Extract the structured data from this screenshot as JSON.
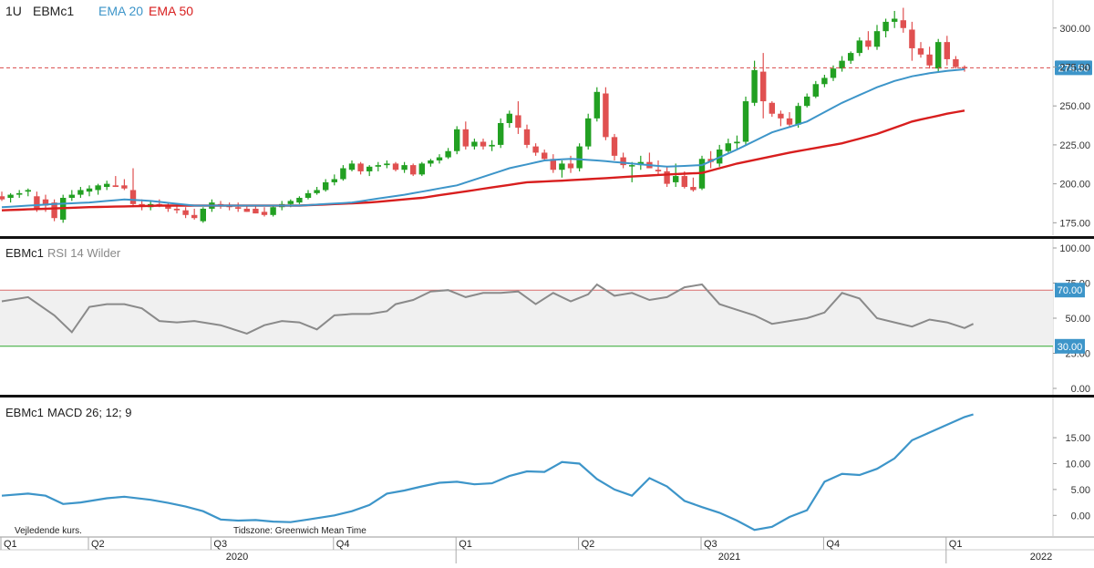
{
  "header": {
    "interval": "1U",
    "symbol": "EBMc1",
    "ema20_label": "EMA 20",
    "ema50_label": "EMA 50"
  },
  "colors": {
    "up": "#22a022",
    "down": "#e05050",
    "ema20": "#3d95c9",
    "ema50": "#d81e1e",
    "rsi": "#8a8a8a",
    "macd": "#3d95c9",
    "band_fill": "#f0f0f0",
    "rsi_upper": "#d96a6a",
    "rsi_lower": "#2fa82f",
    "last_price_tag": "#3d95c9"
  },
  "price_panel": {
    "ylim": [
      167,
      318
    ],
    "yticks": [
      "300.00",
      "275.00",
      "250.00",
      "225.00",
      "200.00",
      "175.00"
    ],
    "last_price": 274.5,
    "last_price_label": "274.50"
  },
  "rsi_panel": {
    "title": "EBMc1",
    "indicator_label": "RSI 14 Wilder",
    "ylim": [
      0,
      100
    ],
    "yticks": [
      "100.00",
      "75.00",
      "50.00",
      "25.00",
      "0.00"
    ],
    "upper": 70,
    "lower": 30,
    "upper_label": "70.00",
    "lower_label": "30.00"
  },
  "macd_panel": {
    "title": "EBMc1",
    "indicator_label": "MACD 26; 12; 9",
    "ylim": [
      -4,
      21
    ],
    "yticks": [
      "15.00",
      "10.00",
      "5.00",
      "0.00"
    ]
  },
  "footer": {
    "note": "Vejledende kurs.",
    "timezone": "Tidszone: Greenwich Mean Time",
    "quarters": [
      "Q1",
      "Q2",
      "Q3",
      "Q4",
      "Q1",
      "Q2",
      "Q3",
      "Q4",
      "Q1"
    ],
    "years": [
      "2020",
      "2021",
      "2022"
    ]
  },
  "chart_data": [
    {
      "type": "candlestick",
      "interval": "1 week",
      "candles": [
        {
          "o": 192,
          "h": 195,
          "l": 189,
          "c": 190
        },
        {
          "o": 191,
          "h": 194,
          "l": 188,
          "c": 193
        },
        {
          "o": 193,
          "h": 196,
          "l": 191,
          "c": 194
        },
        {
          "o": 195,
          "h": 197,
          "l": 192,
          "c": 196
        },
        {
          "o": 192,
          "h": 195,
          "l": 182,
          "c": 184
        },
        {
          "o": 190,
          "h": 193,
          "l": 182,
          "c": 186
        },
        {
          "o": 188,
          "h": 190,
          "l": 176,
          "c": 178
        },
        {
          "o": 177,
          "h": 193,
          "l": 175,
          "c": 191
        },
        {
          "o": 191,
          "h": 196,
          "l": 189,
          "c": 193
        },
        {
          "o": 193,
          "h": 198,
          "l": 191,
          "c": 196
        },
        {
          "o": 195,
          "h": 199,
          "l": 192,
          "c": 197
        },
        {
          "o": 196,
          "h": 200,
          "l": 193,
          "c": 199
        },
        {
          "o": 198,
          "h": 202,
          "l": 196,
          "c": 200
        },
        {
          "o": 199,
          "h": 205,
          "l": 198,
          "c": 198
        },
        {
          "o": 199,
          "h": 203,
          "l": 196,
          "c": 197
        },
        {
          "o": 196,
          "h": 210,
          "l": 185,
          "c": 187
        },
        {
          "o": 187,
          "h": 190,
          "l": 183,
          "c": 186
        },
        {
          "o": 185,
          "h": 189,
          "l": 183,
          "c": 187
        },
        {
          "o": 187,
          "h": 190,
          "l": 185,
          "c": 186
        },
        {
          "o": 186,
          "h": 188,
          "l": 182,
          "c": 184
        },
        {
          "o": 184,
          "h": 186,
          "l": 181,
          "c": 183
        },
        {
          "o": 183,
          "h": 185,
          "l": 178,
          "c": 180
        },
        {
          "o": 180,
          "h": 184,
          "l": 177,
          "c": 178
        },
        {
          "o": 176,
          "h": 185,
          "l": 175,
          "c": 184
        },
        {
          "o": 184,
          "h": 190,
          "l": 182,
          "c": 188
        },
        {
          "o": 187,
          "h": 189,
          "l": 184,
          "c": 186
        },
        {
          "o": 186,
          "h": 188,
          "l": 183,
          "c": 185
        },
        {
          "o": 185,
          "h": 188,
          "l": 182,
          "c": 184
        },
        {
          "o": 184,
          "h": 186,
          "l": 182,
          "c": 182
        },
        {
          "o": 184,
          "h": 186,
          "l": 181,
          "c": 181
        },
        {
          "o": 182,
          "h": 185,
          "l": 179,
          "c": 180
        },
        {
          "o": 180,
          "h": 186,
          "l": 179,
          "c": 185
        },
        {
          "o": 185,
          "h": 189,
          "l": 183,
          "c": 187
        },
        {
          "o": 187,
          "h": 190,
          "l": 185,
          "c": 189
        },
        {
          "o": 188,
          "h": 192,
          "l": 187,
          "c": 191
        },
        {
          "o": 191,
          "h": 196,
          "l": 190,
          "c": 194
        },
        {
          "o": 194,
          "h": 198,
          "l": 193,
          "c": 196
        },
        {
          "o": 196,
          "h": 203,
          "l": 195,
          "c": 201
        },
        {
          "o": 201,
          "h": 206,
          "l": 199,
          "c": 203
        },
        {
          "o": 203,
          "h": 212,
          "l": 202,
          "c": 210
        },
        {
          "o": 209,
          "h": 215,
          "l": 208,
          "c": 213
        },
        {
          "o": 213,
          "h": 214,
          "l": 206,
          "c": 208
        },
        {
          "o": 208,
          "h": 212,
          "l": 205,
          "c": 211
        },
        {
          "o": 211,
          "h": 214,
          "l": 208,
          "c": 212
        },
        {
          "o": 212,
          "h": 215,
          "l": 210,
          "c": 213
        },
        {
          "o": 213,
          "h": 214,
          "l": 208,
          "c": 209
        },
        {
          "o": 209,
          "h": 214,
          "l": 207,
          "c": 212
        },
        {
          "o": 212,
          "h": 213,
          "l": 205,
          "c": 206
        },
        {
          "o": 206,
          "h": 214,
          "l": 205,
          "c": 213
        },
        {
          "o": 213,
          "h": 216,
          "l": 211,
          "c": 215
        },
        {
          "o": 215,
          "h": 219,
          "l": 213,
          "c": 217
        },
        {
          "o": 217,
          "h": 223,
          "l": 216,
          "c": 221
        },
        {
          "o": 221,
          "h": 237,
          "l": 219,
          "c": 235
        },
        {
          "o": 235,
          "h": 240,
          "l": 222,
          "c": 224
        },
        {
          "o": 224,
          "h": 229,
          "l": 222,
          "c": 227
        },
        {
          "o": 227,
          "h": 229,
          "l": 222,
          "c": 224
        },
        {
          "o": 224,
          "h": 228,
          "l": 221,
          "c": 225
        },
        {
          "o": 225,
          "h": 242,
          "l": 223,
          "c": 239
        },
        {
          "o": 239,
          "h": 247,
          "l": 236,
          "c": 245
        },
        {
          "o": 244,
          "h": 253,
          "l": 232,
          "c": 236
        },
        {
          "o": 235,
          "h": 238,
          "l": 223,
          "c": 225
        },
        {
          "o": 224,
          "h": 226,
          "l": 218,
          "c": 220
        },
        {
          "o": 220,
          "h": 222,
          "l": 215,
          "c": 216
        },
        {
          "o": 216,
          "h": 219,
          "l": 207,
          "c": 209
        },
        {
          "o": 209,
          "h": 215,
          "l": 204,
          "c": 213
        },
        {
          "o": 213,
          "h": 218,
          "l": 207,
          "c": 210
        },
        {
          "o": 210,
          "h": 226,
          "l": 208,
          "c": 224
        },
        {
          "o": 224,
          "h": 245,
          "l": 222,
          "c": 242
        },
        {
          "o": 242,
          "h": 262,
          "l": 240,
          "c": 259
        },
        {
          "o": 258,
          "h": 262,
          "l": 228,
          "c": 230
        },
        {
          "o": 230,
          "h": 232,
          "l": 215,
          "c": 218
        },
        {
          "o": 217,
          "h": 220,
          "l": 210,
          "c": 212
        },
        {
          "o": 212,
          "h": 214,
          "l": 201,
          "c": 212
        },
        {
          "o": 212,
          "h": 218,
          "l": 209,
          "c": 214
        },
        {
          "o": 214,
          "h": 220,
          "l": 211,
          "c": 210
        },
        {
          "o": 209,
          "h": 215,
          "l": 206,
          "c": 208
        },
        {
          "o": 208,
          "h": 211,
          "l": 198,
          "c": 200
        },
        {
          "o": 201,
          "h": 213,
          "l": 198,
          "c": 205
        },
        {
          "o": 205,
          "h": 208,
          "l": 197,
          "c": 198
        },
        {
          "o": 198,
          "h": 204,
          "l": 195,
          "c": 196
        },
        {
          "o": 197,
          "h": 218,
          "l": 196,
          "c": 216
        },
        {
          "o": 216,
          "h": 221,
          "l": 210,
          "c": 214
        },
        {
          "o": 213,
          "h": 225,
          "l": 211,
          "c": 222
        },
        {
          "o": 221,
          "h": 229,
          "l": 220,
          "c": 226
        },
        {
          "o": 226,
          "h": 231,
          "l": 222,
          "c": 227
        },
        {
          "o": 227,
          "h": 256,
          "l": 225,
          "c": 253
        },
        {
          "o": 252,
          "h": 279,
          "l": 250,
          "c": 273
        },
        {
          "o": 272,
          "h": 284,
          "l": 242,
          "c": 253
        },
        {
          "o": 252,
          "h": 253,
          "l": 243,
          "c": 245
        },
        {
          "o": 245,
          "h": 247,
          "l": 237,
          "c": 242
        },
        {
          "o": 242,
          "h": 246,
          "l": 236,
          "c": 238
        },
        {
          "o": 238,
          "h": 252,
          "l": 236,
          "c": 250
        },
        {
          "o": 250,
          "h": 258,
          "l": 249,
          "c": 256
        },
        {
          "o": 256,
          "h": 266,
          "l": 255,
          "c": 264
        },
        {
          "o": 264,
          "h": 270,
          "l": 262,
          "c": 268
        },
        {
          "o": 268,
          "h": 276,
          "l": 266,
          "c": 274
        },
        {
          "o": 274,
          "h": 282,
          "l": 272,
          "c": 279
        },
        {
          "o": 279,
          "h": 285,
          "l": 277,
          "c": 284
        },
        {
          "o": 284,
          "h": 294,
          "l": 282,
          "c": 292
        },
        {
          "o": 292,
          "h": 298,
          "l": 286,
          "c": 288
        },
        {
          "o": 288,
          "h": 302,
          "l": 286,
          "c": 298
        },
        {
          "o": 298,
          "h": 306,
          "l": 294,
          "c": 304
        },
        {
          "o": 304,
          "h": 311,
          "l": 300,
          "c": 306
        },
        {
          "o": 305,
          "h": 313,
          "l": 297,
          "c": 300
        },
        {
          "o": 299,
          "h": 304,
          "l": 279,
          "c": 287
        },
        {
          "o": 287,
          "h": 291,
          "l": 281,
          "c": 283
        },
        {
          "o": 283,
          "h": 288,
          "l": 274,
          "c": 276
        },
        {
          "o": 274,
          "h": 293,
          "l": 272,
          "c": 291
        },
        {
          "o": 291,
          "h": 295,
          "l": 276,
          "c": 280
        },
        {
          "o": 280,
          "h": 282,
          "l": 274,
          "c": 275
        },
        {
          "o": 275,
          "h": 276,
          "l": 272,
          "c": 274.5
        }
      ],
      "ema20": [
        [
          0,
          185
        ],
        [
          6,
          187
        ],
        [
          10,
          188
        ],
        [
          14,
          190
        ],
        [
          17,
          189
        ],
        [
          22,
          186
        ],
        [
          28,
          186
        ],
        [
          34,
          186
        ],
        [
          40,
          188
        ],
        [
          46,
          193
        ],
        [
          52,
          199
        ],
        [
          58,
          210
        ],
        [
          62,
          215
        ],
        [
          65,
          216
        ],
        [
          68,
          215
        ],
        [
          72,
          213
        ],
        [
          76,
          211
        ],
        [
          80,
          212
        ],
        [
          84,
          222
        ],
        [
          88,
          233
        ],
        [
          92,
          240
        ],
        [
          96,
          252
        ],
        [
          100,
          262
        ],
        [
          102,
          266
        ],
        [
          104,
          269
        ],
        [
          106,
          271
        ],
        [
          108,
          272.5
        ],
        [
          110,
          273.5
        ],
        [
          111,
          274.5
        ]
      ],
      "ema50": [
        [
          0,
          183
        ],
        [
          10,
          185
        ],
        [
          18,
          186
        ],
        [
          26,
          186
        ],
        [
          34,
          186
        ],
        [
          42,
          188
        ],
        [
          48,
          191
        ],
        [
          54,
          196
        ],
        [
          60,
          201
        ],
        [
          64,
          202
        ],
        [
          70,
          204
        ],
        [
          76,
          206
        ],
        [
          80,
          207
        ],
        [
          84,
          213
        ],
        [
          90,
          220
        ],
        [
          96,
          226
        ],
        [
          100,
          232
        ],
        [
          104,
          240
        ],
        [
          108,
          245
        ],
        [
          111,
          248
        ]
      ]
    },
    {
      "type": "line",
      "name": "RSI 14 Wilder",
      "ylim": [
        0,
        100
      ],
      "x": [
        0,
        3,
        6,
        8,
        10,
        12,
        14,
        16,
        18,
        20,
        22,
        25,
        28,
        30,
        32,
        34,
        36,
        38,
        40,
        42,
        44,
        45,
        47,
        49,
        51,
        53,
        55,
        57,
        59,
        61,
        63,
        65,
        67,
        68,
        70,
        72,
        74,
        76,
        78,
        80,
        82,
        84,
        86,
        88,
        90,
        92,
        94,
        96,
        98,
        100,
        102,
        104,
        106,
        108,
        110,
        111
      ],
      "values": [
        62,
        65,
        52,
        40,
        58,
        60,
        60,
        57,
        48,
        47,
        48,
        45,
        39,
        45,
        48,
        47,
        42,
        52,
        53,
        53,
        55,
        60,
        63,
        69,
        70,
        65,
        68,
        68,
        69,
        60,
        68,
        62,
        67,
        74,
        66,
        68,
        63,
        65,
        72,
        74,
        60,
        56,
        52,
        46,
        48,
        50,
        54,
        68,
        64,
        50,
        47,
        44,
        49,
        47,
        43,
        46
      ]
    },
    {
      "type": "line",
      "name": "MACD 26; 12; 9",
      "ylim": [
        -4,
        21
      ],
      "x": [
        0,
        3,
        5,
        7,
        9,
        12,
        14,
        17,
        19,
        21,
        23,
        25,
        27,
        29,
        31,
        33,
        35,
        38,
        40,
        42,
        44,
        46,
        48,
        50,
        52,
        54,
        56,
        58,
        60,
        62,
        64,
        66,
        68,
        70,
        72,
        74,
        76,
        78,
        80,
        82,
        84,
        86,
        88,
        90,
        92,
        94,
        96,
        98,
        100,
        102,
        104,
        106,
        108,
        110,
        111
      ],
      "values": [
        3.8,
        4.2,
        3.8,
        2.2,
        2.5,
        3.3,
        3.6,
        3.0,
        2.4,
        1.7,
        0.8,
        -0.8,
        -1.0,
        -0.9,
        -1.2,
        -1.3,
        -0.8,
        0.0,
        0.8,
        2.0,
        4.2,
        4.8,
        5.6,
        6.3,
        6.5,
        6.0,
        6.2,
        7.6,
        8.5,
        8.4,
        10.3,
        10.0,
        7.0,
        5.0,
        3.8,
        7.2,
        5.6,
        2.8,
        1.6,
        0.5,
        -1.0,
        -2.8,
        -2.2,
        -0.3,
        1.0,
        6.5,
        8.0,
        7.8,
        9.0,
        11.0,
        14.5,
        16.0,
        17.5,
        19.0,
        19.5
      ]
    }
  ]
}
